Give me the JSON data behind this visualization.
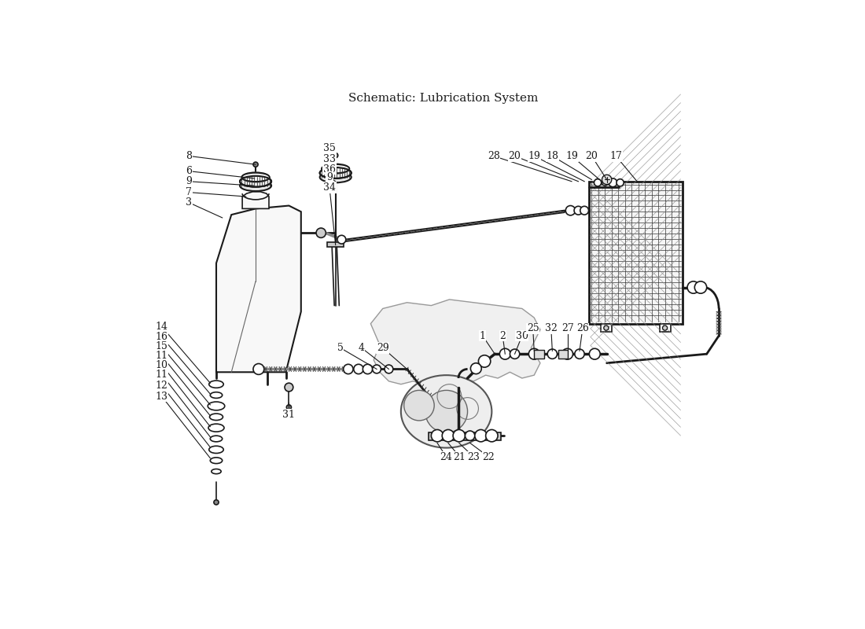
{
  "title": "Schematic: Lubrication System",
  "bg": "#ffffff",
  "lc": "#1a1a1a",
  "figsize": [
    11.0,
    8.0
  ],
  "dpi": 100
}
